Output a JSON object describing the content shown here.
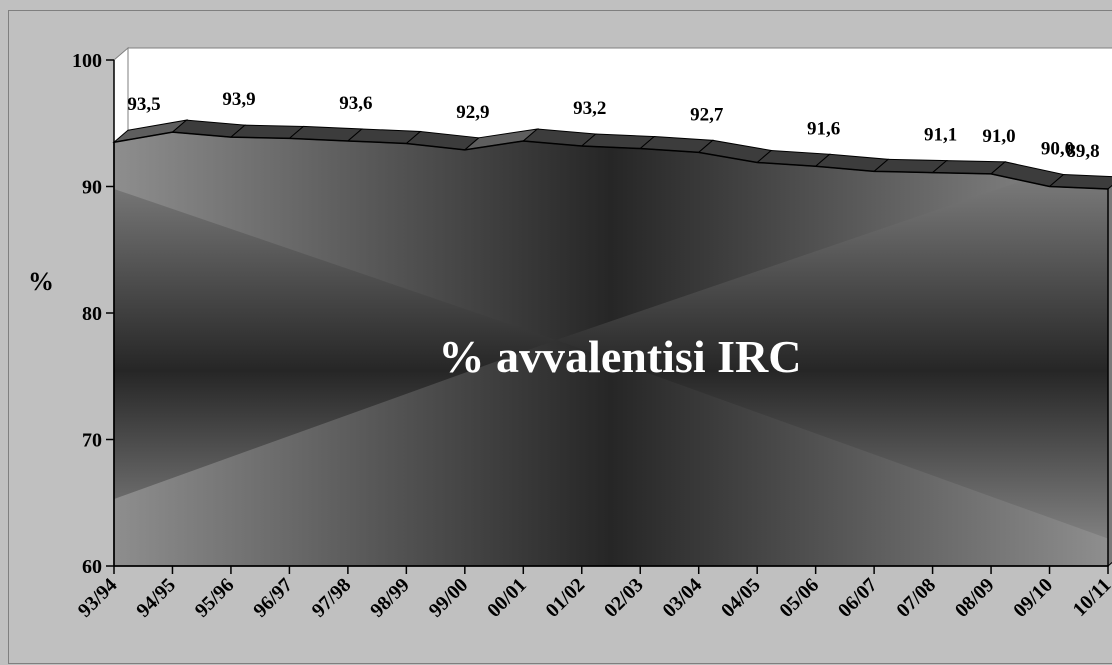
{
  "chart_data": {
    "type": "area",
    "title": "% avvalentisi IRC",
    "xlabel": "",
    "ylabel": "%",
    "ylim": [
      60,
      100
    ],
    "y_ticks": [
      60,
      70,
      80,
      90,
      100
    ],
    "grid": false,
    "legend": "none",
    "categories": [
      "93/94",
      "94/95",
      "95/96",
      "96/97",
      "97/98",
      "98/99",
      "99/00",
      "00/01",
      "01/02",
      "02/03",
      "03/04",
      "04/05",
      "05/06",
      "06/07",
      "07/08",
      "08/09",
      "09/10",
      "10/11"
    ],
    "series": [
      {
        "values": [
          93.5,
          94.3,
          93.9,
          93.8,
          93.6,
          93.4,
          92.9,
          93.6,
          93.2,
          93.0,
          92.7,
          91.9,
          91.6,
          91.2,
          91.1,
          91.0,
          90.0,
          89.8
        ]
      }
    ],
    "data_labels": [
      {
        "category": "93/94",
        "text": "93,5"
      },
      {
        "category": "95/96",
        "text": "93,9"
      },
      {
        "category": "97/98",
        "text": "93,6"
      },
      {
        "category": "99/00",
        "text": "92,9"
      },
      {
        "category": "01/02",
        "text": "93,2"
      },
      {
        "category": "03/04",
        "text": "92,7"
      },
      {
        "category": "05/06",
        "text": "91,6"
      },
      {
        "category": "07/08",
        "text": "91,1"
      },
      {
        "category": "08/09",
        "text": "91,0"
      },
      {
        "category": "09/10",
        "text": "90,0"
      },
      {
        "category": "10/11",
        "text": "89,8"
      }
    ],
    "colors": {
      "plot_back": "#ffffff",
      "area_edge": "#8a8a8a",
      "area_center": "#262626",
      "ridge_top": "#5a5a5a",
      "ridge_side": "#2a2a2a"
    }
  }
}
